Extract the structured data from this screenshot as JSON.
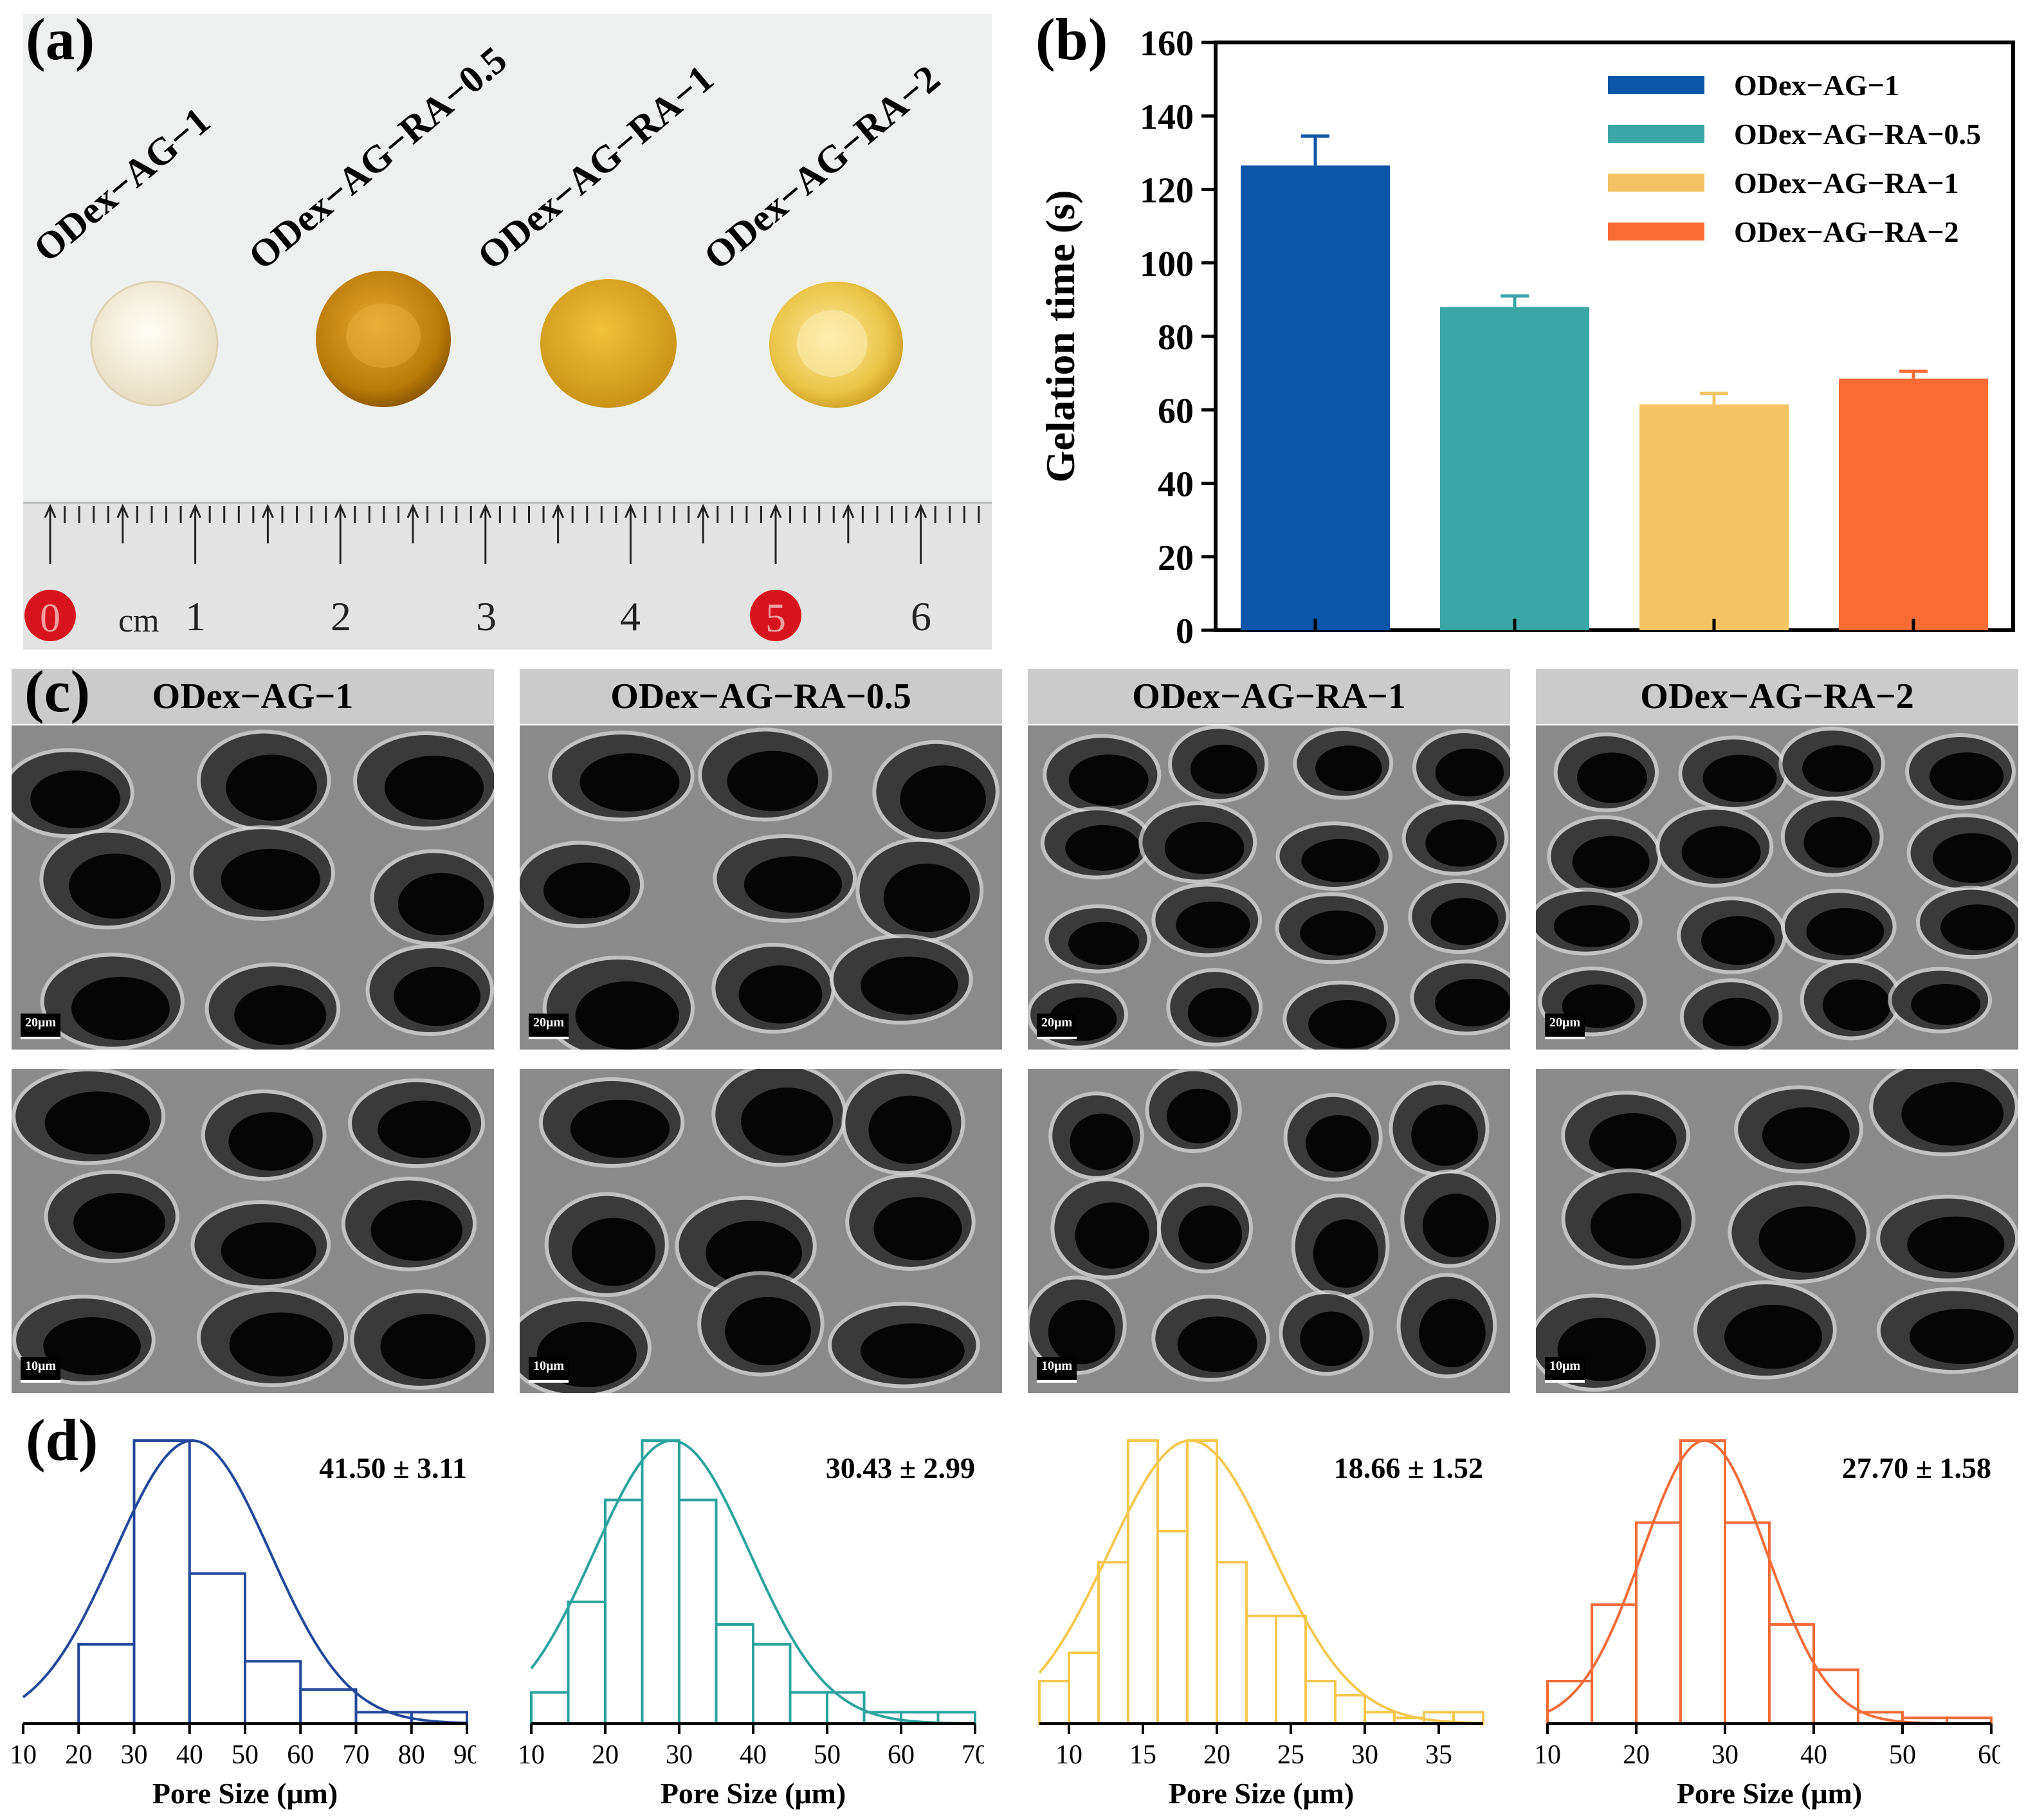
{
  "panel_labels": {
    "a": "(a)",
    "b": "(b)",
    "c": "(c)",
    "d": "(d)"
  },
  "photo": {
    "samples": [
      "ODex−AG−1",
      "ODex−AG−RA−0.5",
      "ODex−AG−RA−1",
      "ODex−AG−RA−2"
    ],
    "ruler_numbers": [
      "0",
      "1",
      "2",
      "3",
      "4",
      "5",
      "6"
    ],
    "ruler_unit": "cm",
    "colors": {
      "sample1": "#f3eedd",
      "sample2": "#c98a0f",
      "sample3": "#e3b12a",
      "sample4": "#ecc94a",
      "paper": "#eef0ef",
      "ruler": "#e4e4e4",
      "marker": "#d7141e"
    }
  },
  "chart_data": {
    "type": "bar",
    "categories": [
      "ODex−AG−1",
      "ODex−AG−RA−0.5",
      "ODex−AG−RA−1",
      "ODex−AG−RA−2"
    ],
    "values": [
      126.5,
      88,
      61.5,
      68.5
    ],
    "errors": [
      8,
      3,
      3,
      2
    ],
    "colors": [
      "#0d56a7",
      "#3aa6a5",
      "#f4c363",
      "#f96b35"
    ],
    "title": "",
    "xlabel": "",
    "ylabel": "Gelation time (s)",
    "ylim": [
      0,
      160
    ],
    "yticks": [
      "0",
      "20",
      "40",
      "60",
      "80",
      "100",
      "120",
      "140",
      "160"
    ],
    "grid": false,
    "legend": "top-right"
  },
  "sem": {
    "headers": [
      "ODex−AG−1",
      "ODex−AG−RA−0.5",
      "ODex−AG−RA−1",
      "ODex−AG−RA−2"
    ],
    "scale_top": "20μm",
    "scale_bottom": "10μm"
  },
  "histograms": [
    {
      "color": "#23479a",
      "stat": "41.50 ± 3.11",
      "xlabel": "Pore Size (μm)",
      "xlim": [
        10,
        90
      ],
      "xticks": [
        "10",
        "20",
        "30",
        "40",
        "50",
        "60",
        "70",
        "80",
        "90"
      ],
      "bin_width": 10,
      "bins_start": [
        20,
        30,
        40,
        50,
        60,
        70,
        80
      ],
      "heights": [
        0.28,
        1.0,
        0.53,
        0.22,
        0.12,
        0.04,
        0.04
      ],
      "mean": 40.5,
      "sd": 14
    },
    {
      "color": "#2aa39d",
      "stat": "30.43 ± 2.99",
      "xlabel": "Pore Size (μm)",
      "xlim": [
        10,
        70
      ],
      "xticks": [
        "10",
        "20",
        "30",
        "40",
        "50",
        "60",
        "70"
      ],
      "bin_width": 5,
      "bins_start": [
        10,
        15,
        20,
        25,
        30,
        35,
        40,
        45,
        50,
        55,
        60,
        65
      ],
      "heights": [
        0.11,
        0.43,
        0.79,
        1.0,
        0.79,
        0.35,
        0.28,
        0.11,
        0.11,
        0.04,
        0.04,
        0.04
      ],
      "mean": 29,
      "sd": 10.5
    },
    {
      "color": "#f5c74f",
      "stat": "18.66 ± 1.52",
      "xlabel": "Pore Size (μm)",
      "xlim": [
        8,
        38
      ],
      "xticks": [
        "10",
        "15",
        "20",
        "25",
        "30",
        "35"
      ],
      "bin_width": 2,
      "bins_start": [
        8,
        10,
        12,
        14,
        16,
        18,
        20,
        22,
        24,
        26,
        28,
        30,
        32,
        34,
        36
      ],
      "heights": [
        0.15,
        0.25,
        0.57,
        1.0,
        0.68,
        1.0,
        0.57,
        0.38,
        0.38,
        0.15,
        0.1,
        0.04,
        0.02,
        0.04,
        0.04
      ],
      "mean": 18.2,
      "sd": 5.5
    },
    {
      "color": "#f36b37",
      "stat": "27.70 ± 1.58",
      "xlabel": "Pore Size (μm)",
      "xlim": [
        10,
        60
      ],
      "xticks": [
        "10",
        "20",
        "30",
        "40",
        "50",
        "60"
      ],
      "bin_width": 5,
      "bins_start": [
        10,
        15,
        20,
        25,
        30,
        35,
        40,
        45,
        50,
        55
      ],
      "heights": [
        0.15,
        0.42,
        0.71,
        1.0,
        0.71,
        0.35,
        0.19,
        0.04,
        0.02,
        0.02
      ],
      "mean": 27.7,
      "sd": 7
    }
  ]
}
